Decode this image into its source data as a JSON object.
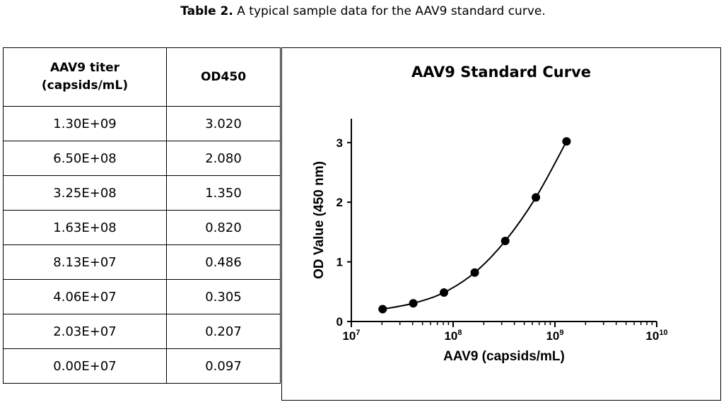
{
  "caption": {
    "bold": "Table 2.",
    "text": " A typical sample data for the AAV9 standard curve."
  },
  "table": {
    "headers": [
      "AAV9 titer (capsids/mL)",
      "OD450"
    ],
    "header_line1": "AAV9 titer",
    "header_line2": "(capsids/mL)",
    "rows": [
      [
        "1.30E+09",
        "3.020"
      ],
      [
        "6.50E+08",
        "2.080"
      ],
      [
        "3.25E+08",
        "1.350"
      ],
      [
        "1.63E+08",
        "0.820"
      ],
      [
        "8.13E+07",
        "0.486"
      ],
      [
        "4.06E+07",
        "0.305"
      ],
      [
        "2.03E+07",
        "0.207"
      ],
      [
        "0.00E+07",
        "0.097"
      ]
    ]
  },
  "chart_data": {
    "type": "scatter",
    "title": "AAV9 Standard Curve",
    "xlabel": "AAV9 (capsids/mL)",
    "ylabel": "OD Value (450 nm)",
    "xscale": "log",
    "xlim": [
      10000000,
      10000000000
    ],
    "ylim": [
      0,
      3.4
    ],
    "xticks": [
      {
        "value": 10000000,
        "base": "10",
        "exp": "7"
      },
      {
        "value": 100000000,
        "base": "10",
        "exp": "8"
      },
      {
        "value": 1000000000,
        "base": "10",
        "exp": "9"
      },
      {
        "value": 10000000000,
        "base": "10",
        "exp": "10"
      }
    ],
    "yticks": [
      0,
      1,
      2,
      3
    ],
    "points": [
      {
        "x": 20300000,
        "y": 0.207
      },
      {
        "x": 40600000,
        "y": 0.305
      },
      {
        "x": 81300000,
        "y": 0.486
      },
      {
        "x": 163000000,
        "y": 0.82
      },
      {
        "x": 325000000,
        "y": 1.35
      },
      {
        "x": 650000000,
        "y": 2.08
      },
      {
        "x": 1300000000,
        "y": 3.02
      }
    ],
    "fit": "smooth curve through points",
    "color": "#000000"
  }
}
